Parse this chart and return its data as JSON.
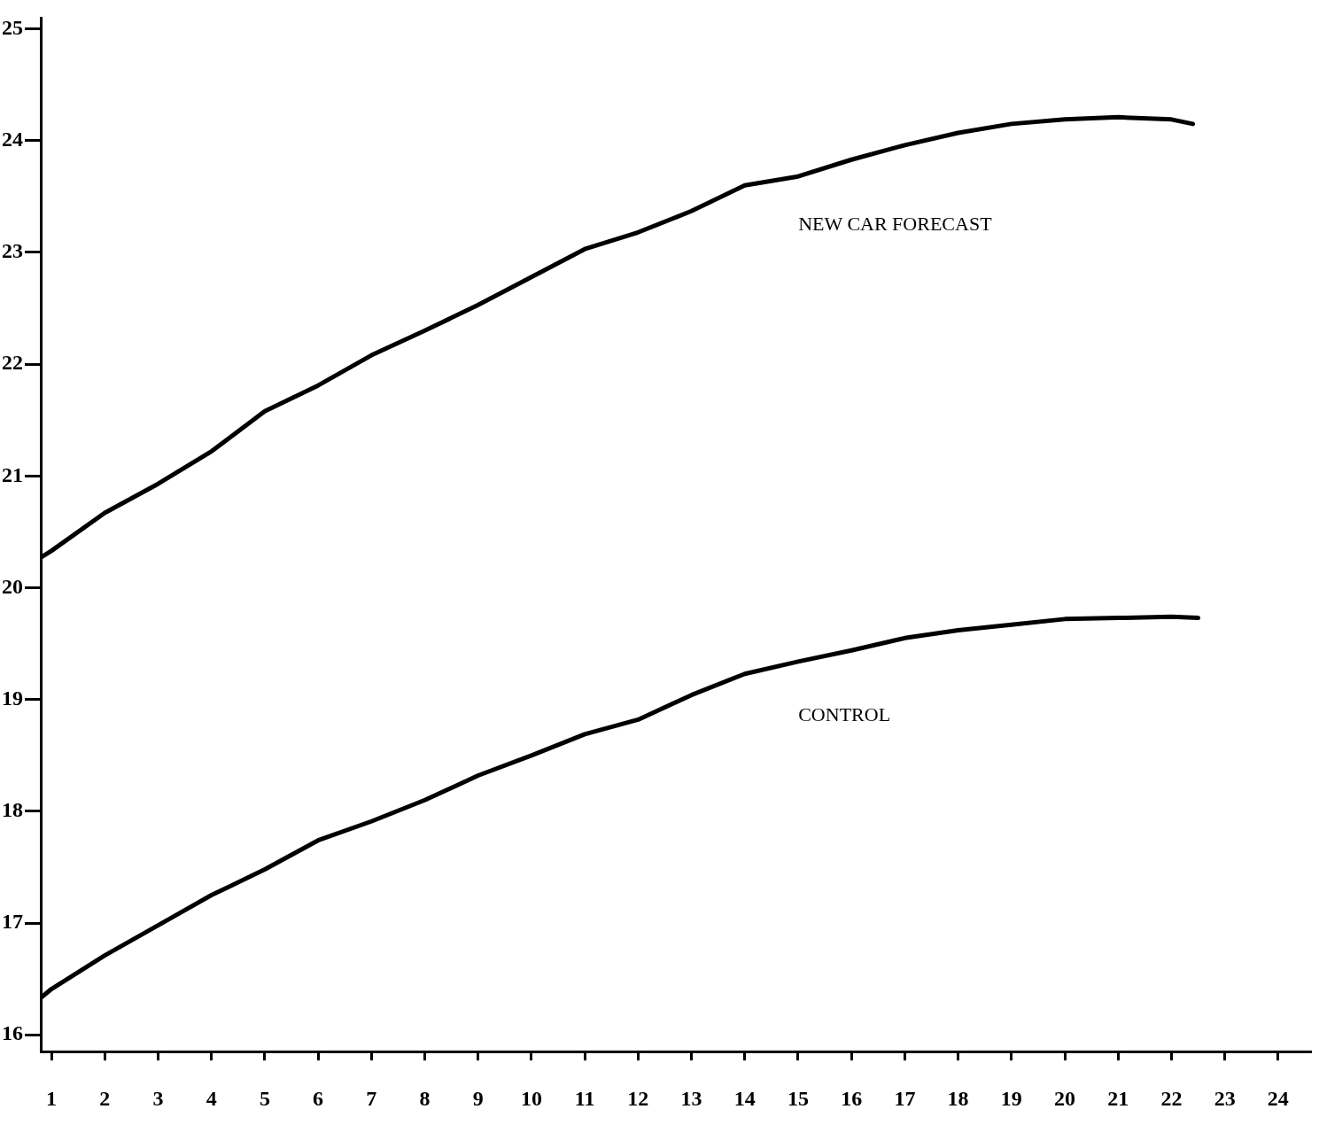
{
  "chart_data": {
    "type": "line",
    "xlim": [
      0.8,
      24.6
    ],
    "xticks": [
      1,
      2,
      3,
      4,
      5,
      6,
      7,
      8,
      9,
      10,
      11,
      12,
      13,
      14,
      15,
      16,
      17,
      18,
      19,
      20,
      21,
      22,
      23,
      24
    ],
    "ylim": [
      15.85,
      25.1
    ],
    "yticks": [
      16,
      17,
      18,
      19,
      20,
      21,
      22,
      23,
      24,
      25
    ],
    "grid": false,
    "legend": false,
    "marker": "none",
    "line_style": "solid",
    "series": [
      {
        "name": "NEW CAR FORECAST",
        "color": "#000000",
        "x": [
          0.8,
          1,
          2,
          3,
          4,
          5,
          6,
          7,
          8,
          9,
          10,
          11,
          12,
          13,
          14,
          15,
          16,
          17,
          18,
          19,
          20,
          21,
          22,
          22.4
        ],
        "values": [
          20.27,
          20.33,
          20.67,
          20.93,
          21.22,
          21.58,
          21.81,
          22.08,
          22.3,
          22.53,
          22.78,
          23.03,
          23.18,
          23.37,
          23.6,
          23.68,
          23.83,
          23.96,
          24.07,
          24.15,
          24.19,
          24.21,
          24.19,
          24.15
        ]
      },
      {
        "name": "CONTROL",
        "color": "#000000",
        "x": [
          0.8,
          1,
          2,
          3,
          4,
          5,
          6,
          7,
          8,
          9,
          10,
          11,
          12,
          13,
          14,
          15,
          16,
          17,
          18,
          19,
          20,
          21,
          22,
          22.5
        ],
        "values": [
          16.33,
          16.41,
          16.71,
          16.98,
          17.25,
          17.48,
          17.74,
          17.91,
          18.1,
          18.32,
          18.5,
          18.69,
          18.82,
          19.04,
          19.23,
          19.34,
          19.44,
          19.55,
          19.62,
          19.67,
          19.72,
          19.73,
          19.74,
          19.73
        ]
      }
    ]
  }
}
